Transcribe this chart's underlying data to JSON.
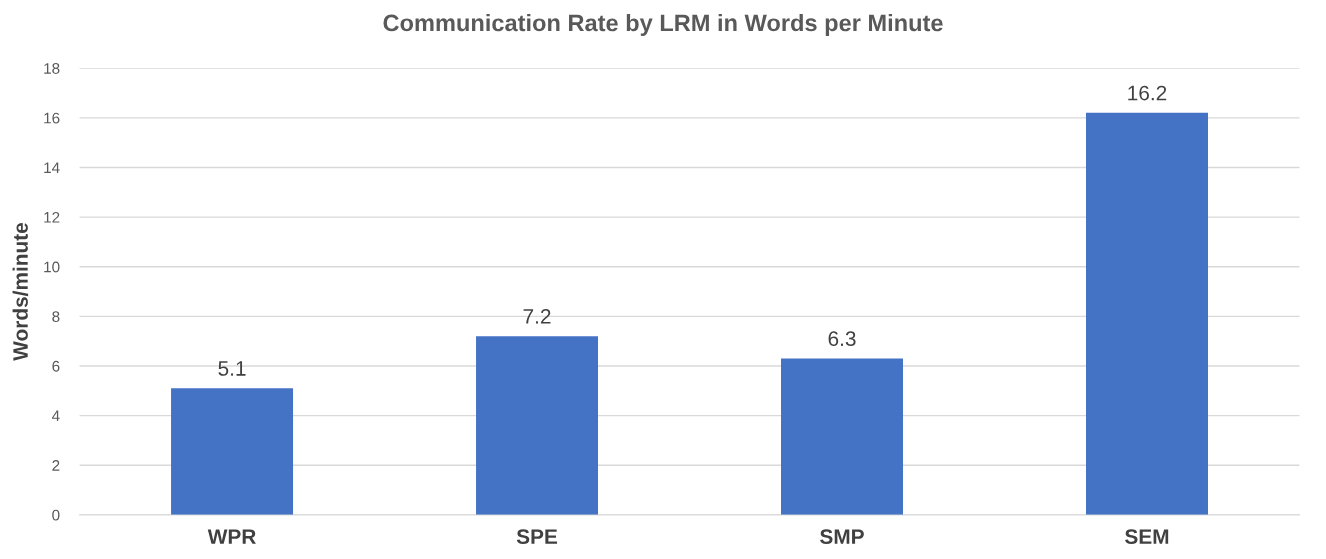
{
  "chart_data": {
    "type": "bar",
    "title": "Communication Rate by LRM in Words per Minute",
    "ylabel": "Words/minute",
    "categories": [
      "WPR",
      "SPE",
      "SMP",
      "SEM"
    ],
    "values": [
      5.1,
      7.2,
      6.3,
      16.2
    ],
    "color": "#4472c4",
    "ylim": [
      0,
      18
    ],
    "yticks": [
      0,
      2,
      4,
      6,
      8,
      10,
      12,
      14,
      16,
      18
    ],
    "grid": "y",
    "data_labels": true
  }
}
